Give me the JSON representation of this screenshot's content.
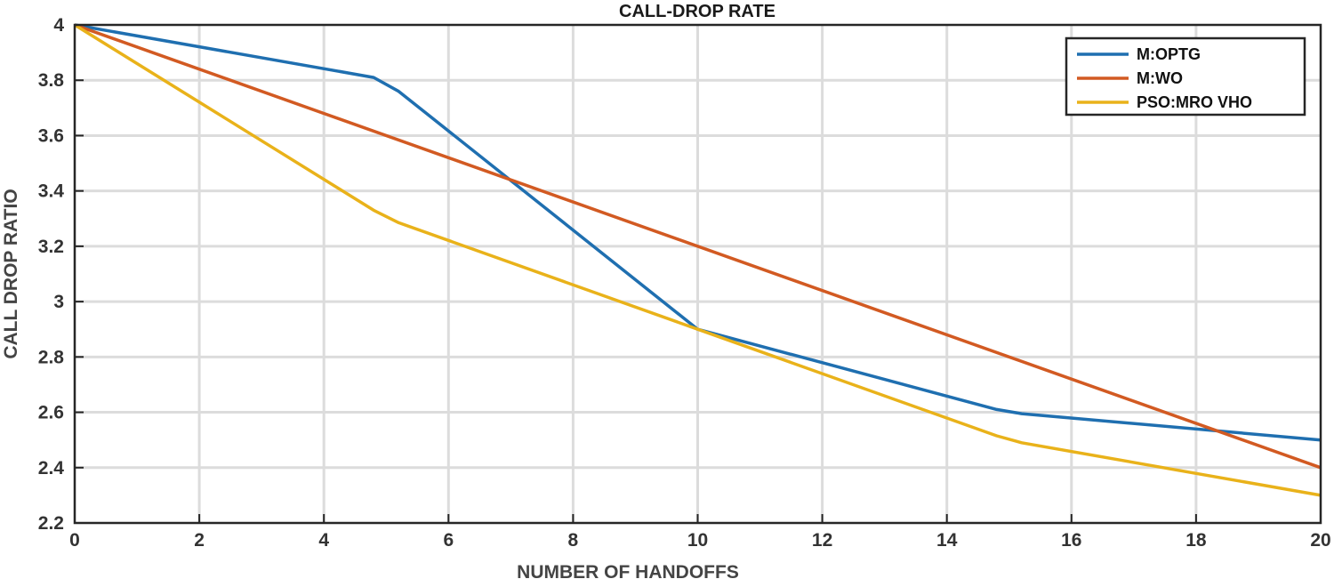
{
  "chart_data": {
    "type": "line",
    "title": "CALL-DROP RATE",
    "xlabel": "NUMBER OF HANDOFFS",
    "ylabel": "CALL DROP RATIO",
    "xlim": [
      0,
      20
    ],
    "ylim": [
      2.2,
      4
    ],
    "xticks": [
      "0",
      "2",
      "4",
      "6",
      "8",
      "10",
      "12",
      "14",
      "16",
      "18",
      "20"
    ],
    "yticks": [
      "2.2",
      "2.4",
      "2.6",
      "2.8",
      "3",
      "3.2",
      "3.4",
      "3.6",
      "3.8",
      "4"
    ],
    "grid": true,
    "legend_position": "top-right",
    "series": [
      {
        "name": "M:OPTG",
        "color": "#1f6fb0",
        "points": [
          [
            0,
            4.0
          ],
          [
            4.8,
            3.81
          ],
          [
            5.2,
            3.76
          ],
          [
            10,
            2.9
          ],
          [
            14.8,
            2.61
          ],
          [
            15.2,
            2.595
          ],
          [
            20,
            2.5
          ]
        ]
      },
      {
        "name": "M:WO",
        "color": "#d25a22",
        "points": [
          [
            0,
            4.0
          ],
          [
            20,
            2.4
          ]
        ]
      },
      {
        "name": "PSO:MRO VHO",
        "color": "#e9b21a",
        "points": [
          [
            0,
            4.0
          ],
          [
            4.8,
            3.33
          ],
          [
            5.2,
            3.285
          ],
          [
            10,
            2.9
          ],
          [
            14.8,
            2.515
          ],
          [
            15.2,
            2.49
          ],
          [
            20,
            2.3
          ]
        ]
      }
    ]
  }
}
